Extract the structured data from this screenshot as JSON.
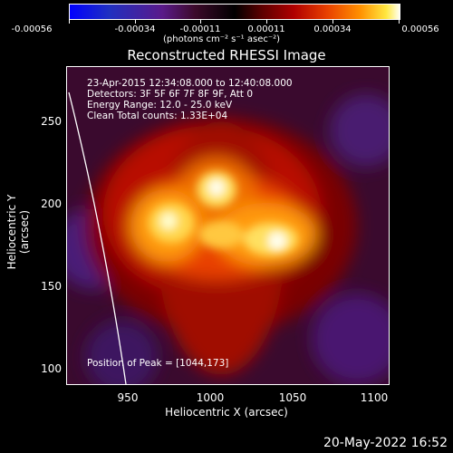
{
  "colorbar": {
    "ticks": [
      "-0.00056",
      "-0.00034",
      "-0.00011",
      "0.00011",
      "0.00034",
      "0.00056"
    ],
    "units": "(photons cm⁻² s⁻¹ asec⁻²)"
  },
  "title": "Reconstructed RHESSI Image",
  "annotations": {
    "time_range": "23-Apr-2015 12:34:08.000 to 12:40:08.000",
    "detectors": "Detectors: 3F 5F 6F 7F 8F 9F, Att 0",
    "energy": "Energy Range: 12.0 - 25.0 keV",
    "clean": "Clean     Total counts: 1.33E+04",
    "peak": "Position of Peak = [1044,173]"
  },
  "axes": {
    "x_ticks": [
      "950",
      "1000",
      "1050",
      "1100"
    ],
    "y_ticks": [
      "100",
      "150",
      "200",
      "250"
    ],
    "x_title": "Heliocentric X (arcsec)",
    "y_title": "Heliocentric Y (arcsec)"
  },
  "datestamp": "20-May-2022 16:52"
}
